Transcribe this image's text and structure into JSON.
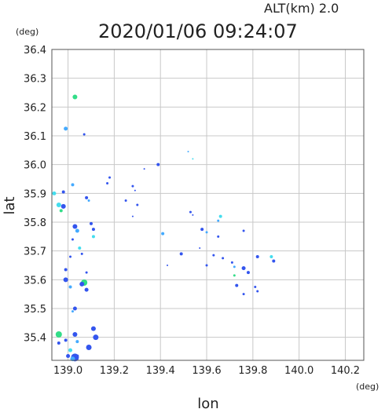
{
  "chart_data": {
    "type": "scatter",
    "altitude_label": "ALT(km)  2.0",
    "timestamp": "2020/01/06 09:24:07",
    "xlabel": "lon",
    "ylabel": "lat",
    "x_unit": "(deg)",
    "y_unit": "(deg)",
    "xlim": [
      138.93,
      140.28
    ],
    "ylim": [
      35.32,
      36.4
    ],
    "x_ticks": [
      "139.0",
      "139.2",
      "139.4",
      "139.6",
      "139.8",
      "140.0",
      "140.2"
    ],
    "y_ticks": [
      "35.4",
      "35.5",
      "35.6",
      "35.7",
      "35.8",
      "35.9",
      "36.0",
      "36.1",
      "36.2",
      "36.3",
      "36.4"
    ],
    "grid": true,
    "colors": {
      "blue": "#3355ee",
      "lightblue": "#44aaff",
      "cyan": "#44ddee",
      "green": "#33dd88",
      "grid": "#c8c8c8"
    },
    "points": [
      {
        "x": 139.03,
        "y": 36.235,
        "s": 3,
        "c": "green"
      },
      {
        "x": 138.99,
        "y": 36.125,
        "s": 2.5,
        "c": "lightblue"
      },
      {
        "x": 139.07,
        "y": 36.105,
        "s": 1.5,
        "c": "blue"
      },
      {
        "x": 139.52,
        "y": 36.045,
        "s": 1,
        "c": "lightblue"
      },
      {
        "x": 139.54,
        "y": 36.02,
        "s": 1,
        "c": "cyan"
      },
      {
        "x": 139.39,
        "y": 36.0,
        "s": 2,
        "c": "blue"
      },
      {
        "x": 139.33,
        "y": 35.985,
        "s": 1,
        "c": "blue"
      },
      {
        "x": 139.18,
        "y": 35.955,
        "s": 1.5,
        "c": "blue"
      },
      {
        "x": 139.17,
        "y": 35.935,
        "s": 1.5,
        "c": "blue"
      },
      {
        "x": 139.02,
        "y": 35.93,
        "s": 2,
        "c": "lightblue"
      },
      {
        "x": 139.28,
        "y": 35.925,
        "s": 1.5,
        "c": "blue"
      },
      {
        "x": 139.29,
        "y": 35.91,
        "s": 1,
        "c": "blue"
      },
      {
        "x": 138.94,
        "y": 35.9,
        "s": 2.5,
        "c": "cyan"
      },
      {
        "x": 138.98,
        "y": 35.905,
        "s": 2,
        "c": "blue"
      },
      {
        "x": 139.08,
        "y": 35.885,
        "s": 2,
        "c": "blue"
      },
      {
        "x": 139.09,
        "y": 35.875,
        "s": 1.5,
        "c": "lightblue"
      },
      {
        "x": 139.25,
        "y": 35.875,
        "s": 1.5,
        "c": "blue"
      },
      {
        "x": 138.96,
        "y": 35.86,
        "s": 3,
        "c": "cyan"
      },
      {
        "x": 138.98,
        "y": 35.855,
        "s": 3,
        "c": "blue"
      },
      {
        "x": 138.97,
        "y": 35.84,
        "s": 2,
        "c": "green"
      },
      {
        "x": 139.3,
        "y": 35.86,
        "s": 1.5,
        "c": "blue"
      },
      {
        "x": 139.53,
        "y": 35.835,
        "s": 1.5,
        "c": "blue"
      },
      {
        "x": 139.54,
        "y": 35.825,
        "s": 1,
        "c": "blue"
      },
      {
        "x": 139.28,
        "y": 35.82,
        "s": 1,
        "c": "blue"
      },
      {
        "x": 139.66,
        "y": 35.82,
        "s": 2,
        "c": "cyan"
      },
      {
        "x": 139.65,
        "y": 35.805,
        "s": 1.5,
        "c": "lightblue"
      },
      {
        "x": 139.1,
        "y": 35.795,
        "s": 2,
        "c": "blue"
      },
      {
        "x": 139.03,
        "y": 35.785,
        "s": 3,
        "c": "blue"
      },
      {
        "x": 139.04,
        "y": 35.77,
        "s": 2.5,
        "c": "lightblue"
      },
      {
        "x": 139.11,
        "y": 35.775,
        "s": 2,
        "c": "blue"
      },
      {
        "x": 139.58,
        "y": 35.775,
        "s": 2,
        "c": "blue"
      },
      {
        "x": 139.6,
        "y": 35.765,
        "s": 1.5,
        "c": "lightblue"
      },
      {
        "x": 139.76,
        "y": 35.77,
        "s": 1.5,
        "c": "blue"
      },
      {
        "x": 139.41,
        "y": 35.76,
        "s": 2,
        "c": "lightblue"
      },
      {
        "x": 139.11,
        "y": 35.75,
        "s": 2,
        "c": "cyan"
      },
      {
        "x": 139.02,
        "y": 35.74,
        "s": 1.5,
        "c": "blue"
      },
      {
        "x": 139.65,
        "y": 35.75,
        "s": 1.5,
        "c": "blue"
      },
      {
        "x": 139.05,
        "y": 35.71,
        "s": 2,
        "c": "cyan"
      },
      {
        "x": 139.57,
        "y": 35.71,
        "s": 1,
        "c": "blue"
      },
      {
        "x": 139.49,
        "y": 35.69,
        "s": 2,
        "c": "blue"
      },
      {
        "x": 139.06,
        "y": 35.69,
        "s": 1.5,
        "c": "blue"
      },
      {
        "x": 139.01,
        "y": 35.68,
        "s": 1.5,
        "c": "blue"
      },
      {
        "x": 139.63,
        "y": 35.685,
        "s": 1.5,
        "c": "blue"
      },
      {
        "x": 139.67,
        "y": 35.675,
        "s": 1.5,
        "c": "blue"
      },
      {
        "x": 139.82,
        "y": 35.68,
        "s": 2,
        "c": "blue"
      },
      {
        "x": 139.88,
        "y": 35.68,
        "s": 2,
        "c": "cyan"
      },
      {
        "x": 139.89,
        "y": 35.665,
        "s": 2,
        "c": "blue"
      },
      {
        "x": 139.71,
        "y": 35.66,
        "s": 1.5,
        "c": "blue"
      },
      {
        "x": 139.6,
        "y": 35.65,
        "s": 1.5,
        "c": "blue"
      },
      {
        "x": 139.43,
        "y": 35.65,
        "s": 1,
        "c": "blue"
      },
      {
        "x": 139.72,
        "y": 35.645,
        "s": 1.5,
        "c": "lightblue"
      },
      {
        "x": 139.76,
        "y": 35.64,
        "s": 2.5,
        "c": "blue"
      },
      {
        "x": 139.78,
        "y": 35.625,
        "s": 2,
        "c": "blue"
      },
      {
        "x": 138.99,
        "y": 35.635,
        "s": 2,
        "c": "blue"
      },
      {
        "x": 139.08,
        "y": 35.625,
        "s": 1.5,
        "c": "blue"
      },
      {
        "x": 139.72,
        "y": 35.615,
        "s": 1.5,
        "c": "green"
      },
      {
        "x": 138.99,
        "y": 35.6,
        "s": 3,
        "c": "blue"
      },
      {
        "x": 139.07,
        "y": 35.59,
        "s": 4,
        "c": "green"
      },
      {
        "x": 139.06,
        "y": 35.585,
        "s": 3,
        "c": "blue"
      },
      {
        "x": 139.73,
        "y": 35.58,
        "s": 2,
        "c": "blue"
      },
      {
        "x": 139.81,
        "y": 35.575,
        "s": 1.5,
        "c": "blue"
      },
      {
        "x": 139.01,
        "y": 35.575,
        "s": 2,
        "c": "lightblue"
      },
      {
        "x": 139.08,
        "y": 35.565,
        "s": 2.5,
        "c": "blue"
      },
      {
        "x": 139.82,
        "y": 35.56,
        "s": 1.5,
        "c": "blue"
      },
      {
        "x": 139.76,
        "y": 35.55,
        "s": 1.5,
        "c": "blue"
      },
      {
        "x": 139.03,
        "y": 35.5,
        "s": 2.5,
        "c": "blue"
      },
      {
        "x": 139.02,
        "y": 35.49,
        "s": 1.5,
        "c": "lightblue"
      },
      {
        "x": 139.11,
        "y": 35.43,
        "s": 3,
        "c": "blue"
      },
      {
        "x": 138.96,
        "y": 35.41,
        "s": 4,
        "c": "green"
      },
      {
        "x": 139.03,
        "y": 35.41,
        "s": 3,
        "c": "blue"
      },
      {
        "x": 139.12,
        "y": 35.4,
        "s": 3.5,
        "c": "blue"
      },
      {
        "x": 138.99,
        "y": 35.39,
        "s": 2,
        "c": "blue"
      },
      {
        "x": 139.04,
        "y": 35.385,
        "s": 2,
        "c": "lightblue"
      },
      {
        "x": 138.96,
        "y": 35.38,
        "s": 2,
        "c": "blue"
      },
      {
        "x": 139.09,
        "y": 35.365,
        "s": 3.5,
        "c": "blue"
      },
      {
        "x": 139.01,
        "y": 35.355,
        "s": 2.5,
        "c": "cyan"
      },
      {
        "x": 139.0,
        "y": 35.335,
        "s": 2.5,
        "c": "blue"
      },
      {
        "x": 139.03,
        "y": 35.33,
        "s": 5,
        "c": "blue"
      },
      {
        "x": 139.02,
        "y": 35.325,
        "s": 3,
        "c": "lightblue"
      },
      {
        "x": 139.04,
        "y": 35.335,
        "s": 2,
        "c": "blue"
      }
    ]
  }
}
